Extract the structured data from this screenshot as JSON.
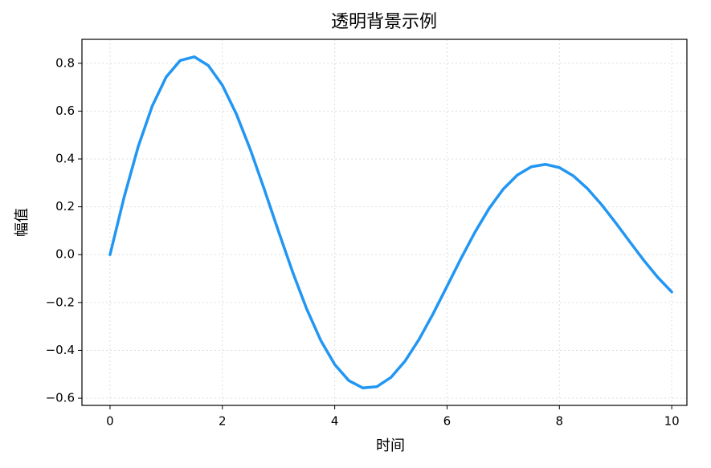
{
  "chart_data": {
    "type": "line",
    "title": "透明背景示例",
    "x_label": "时间",
    "y_label": "幅值",
    "x": [
      0,
      0.25,
      0.5,
      0.75,
      1,
      1.25,
      1.5,
      1.75,
      2,
      2.25,
      2.5,
      2.75,
      3,
      3.25,
      3.5,
      3.75,
      4,
      4.25,
      4.5,
      4.75,
      5,
      5.25,
      5.5,
      5.75,
      6,
      6.25,
      6.5,
      6.75,
      7,
      7.25,
      7.5,
      7.75,
      8,
      8.25,
      8.5,
      8.75,
      9,
      9.25,
      9.5,
      9.75,
      10
    ],
    "series": [
      {
        "color": "#2196f3",
        "values": [
          0,
          0.2398,
          0.4504,
          0.6206,
          0.7426,
          0.8117,
          0.8269,
          0.7906,
          0.7082,
          0.5873,
          0.4379,
          0.2707,
          0.097,
          -0.0721,
          -0.2265,
          -0.3577,
          -0.459,
          -0.5262,
          -0.557,
          -0.5518,
          -0.5133,
          -0.4456,
          -0.3547,
          -0.2477,
          -0.132,
          -0.0152,
          0.0954,
          0.1935,
          0.2739,
          0.3325,
          0.3673,
          0.3775,
          0.364,
          0.3291,
          0.276,
          0.2093,
          0.1338,
          0.0549,
          -0.0229,
          -0.0944,
          -0.1559
        ]
      }
    ],
    "xlim": [
      -0.5,
      10.27
    ],
    "ylim": [
      -0.63,
      0.9
    ],
    "xticks": [
      0,
      2,
      4,
      6,
      8,
      10
    ],
    "yticks": [
      {
        "value": -0.6,
        "label": "−0.6"
      },
      {
        "value": -0.4,
        "label": "−0.4"
      },
      {
        "value": -0.2,
        "label": "−0.2"
      },
      {
        "value": 0,
        "label": "0.0"
      },
      {
        "value": 0.2,
        "label": "0.2"
      },
      0.4,
      0.6,
      0.8
    ],
    "grid": true
  }
}
